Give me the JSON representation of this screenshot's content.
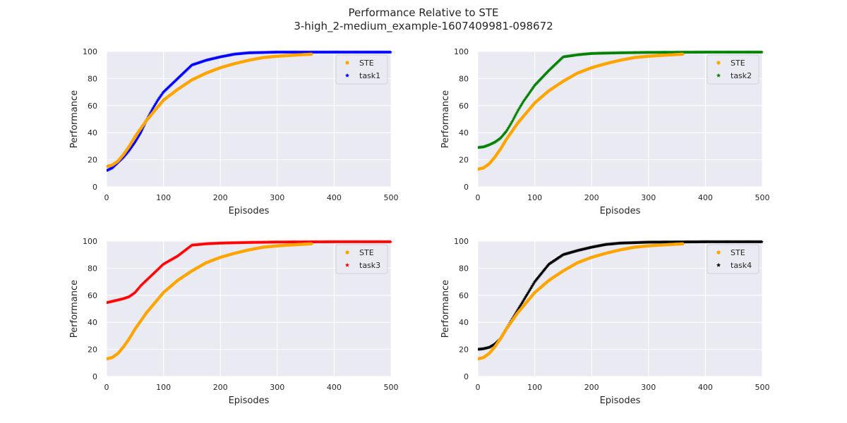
{
  "figure": {
    "title": "Performance Relative to STE",
    "subtitle": "3-high_2-medium_example-1607409981-098672"
  },
  "style": {
    "background": "#eaeaf2",
    "grid": "#ffffff",
    "ste_color": "#ffa500"
  },
  "chart_data": [
    {
      "type": "scatter",
      "xlabel": "Episodes",
      "ylabel": "Performance",
      "xlim": [
        0,
        500
      ],
      "ylim": [
        0,
        100
      ],
      "xticks": [
        0,
        100,
        200,
        300,
        400,
        500
      ],
      "yticks": [
        0,
        20,
        40,
        60,
        80,
        100
      ],
      "grid": true,
      "legend_position": "top-right",
      "series": [
        {
          "name": "STE",
          "color": "#ffa500",
          "marker": "circle",
          "x": [
            0,
            10,
            20,
            30,
            40,
            50,
            60,
            70,
            80,
            90,
            100,
            125,
            150,
            175,
            200,
            225,
            250,
            275,
            300,
            330,
            360
          ],
          "y": [
            15,
            16,
            19,
            24,
            30,
            37,
            43,
            49,
            54,
            59,
            64,
            72,
            79,
            84,
            88,
            91,
            93.5,
            95.5,
            96.5,
            97.3,
            98
          ]
        },
        {
          "name": "task1",
          "color": "#0000ff",
          "marker": "star",
          "x": [
            0,
            10,
            20,
            30,
            40,
            50,
            60,
            70,
            80,
            90,
            100,
            125,
            150,
            175,
            200,
            225,
            250,
            300,
            400,
            500
          ],
          "y": [
            12,
            14,
            18,
            22,
            27,
            33,
            40,
            49,
            57,
            64,
            70,
            80,
            90,
            93.5,
            96,
            98,
            99,
            99.5,
            99.5,
            99.5
          ]
        }
      ]
    },
    {
      "type": "scatter",
      "xlabel": "Episodes",
      "ylabel": "Performance",
      "xlim": [
        0,
        500
      ],
      "ylim": [
        0,
        100
      ],
      "xticks": [
        0,
        100,
        200,
        300,
        400,
        500
      ],
      "yticks": [
        0,
        20,
        40,
        60,
        80,
        100
      ],
      "grid": true,
      "legend_position": "top-right",
      "series": [
        {
          "name": "STE",
          "color": "#ffa500",
          "marker": "circle",
          "x": [
            0,
            10,
            20,
            30,
            40,
            50,
            60,
            70,
            80,
            90,
            100,
            125,
            150,
            175,
            200,
            225,
            250,
            275,
            300,
            330,
            360
          ],
          "y": [
            13,
            14,
            17,
            22,
            28,
            35,
            41,
            47,
            52,
            57,
            62,
            71,
            78,
            84,
            88,
            91,
            93.5,
            95.5,
            96.5,
            97.3,
            98
          ]
        },
        {
          "name": "task2",
          "color": "#008000",
          "marker": "star",
          "x": [
            0,
            10,
            20,
            30,
            40,
            50,
            60,
            70,
            80,
            90,
            100,
            125,
            150,
            175,
            200,
            250,
            300,
            400,
            500
          ],
          "y": [
            29,
            29.5,
            31,
            33,
            36,
            41,
            48,
            56,
            63,
            69,
            75,
            86,
            96,
            97.5,
            98.5,
            99,
            99.3,
            99.5,
            99.5
          ]
        }
      ]
    },
    {
      "type": "scatter",
      "xlabel": "Episodes",
      "ylabel": "Performance",
      "xlim": [
        0,
        500
      ],
      "ylim": [
        0,
        100
      ],
      "xticks": [
        0,
        100,
        200,
        300,
        400,
        500
      ],
      "yticks": [
        0,
        20,
        40,
        60,
        80,
        100
      ],
      "grid": true,
      "legend_position": "top-right",
      "series": [
        {
          "name": "STE",
          "color": "#ffa500",
          "marker": "circle",
          "x": [
            0,
            10,
            20,
            30,
            40,
            50,
            60,
            70,
            80,
            90,
            100,
            125,
            150,
            175,
            200,
            225,
            250,
            275,
            300,
            330,
            360
          ],
          "y": [
            13,
            14,
            17,
            22,
            28,
            35,
            41,
            47,
            52,
            57,
            62,
            71,
            78,
            84,
            88,
            91,
            93.5,
            95.5,
            96.5,
            97.3,
            98
          ]
        },
        {
          "name": "task3",
          "color": "#ff0000",
          "marker": "star",
          "x": [
            0,
            10,
            20,
            30,
            40,
            50,
            60,
            70,
            80,
            90,
            100,
            125,
            150,
            175,
            200,
            250,
            300,
            400,
            500
          ],
          "y": [
            54.5,
            55.5,
            56.5,
            57.5,
            59,
            62,
            67,
            71,
            75,
            79,
            83,
            89,
            97,
            98,
            98.5,
            99,
            99.3,
            99.5,
            99.5
          ]
        }
      ]
    },
    {
      "type": "scatter",
      "xlabel": "Episodes",
      "ylabel": "Performance",
      "xlim": [
        0,
        500
      ],
      "ylim": [
        0,
        100
      ],
      "xticks": [
        0,
        100,
        200,
        300,
        400,
        500
      ],
      "yticks": [
        0,
        20,
        40,
        60,
        80,
        100
      ],
      "grid": true,
      "legend_position": "top-right",
      "series": [
        {
          "name": "STE",
          "color": "#ffa500",
          "marker": "circle",
          "x": [
            0,
            10,
            20,
            30,
            40,
            50,
            60,
            70,
            80,
            90,
            100,
            125,
            150,
            175,
            200,
            225,
            250,
            275,
            300,
            330,
            360
          ],
          "y": [
            13,
            14,
            17,
            22,
            28,
            35,
            41,
            47,
            52,
            57,
            62,
            71,
            78,
            84,
            88,
            91,
            93.5,
            95.5,
            96.5,
            97.3,
            98
          ]
        },
        {
          "name": "task4",
          "color": "#000000",
          "marker": "star",
          "x": [
            0,
            10,
            20,
            30,
            40,
            50,
            60,
            70,
            80,
            90,
            100,
            125,
            150,
            175,
            200,
            225,
            250,
            300,
            400,
            500
          ],
          "y": [
            20,
            20.5,
            21.5,
            24,
            28,
            35,
            42,
            49,
            56,
            63,
            70,
            83,
            90,
            93,
            95.5,
            97.5,
            98.5,
            99.2,
            99.5,
            99.5
          ]
        }
      ]
    }
  ]
}
